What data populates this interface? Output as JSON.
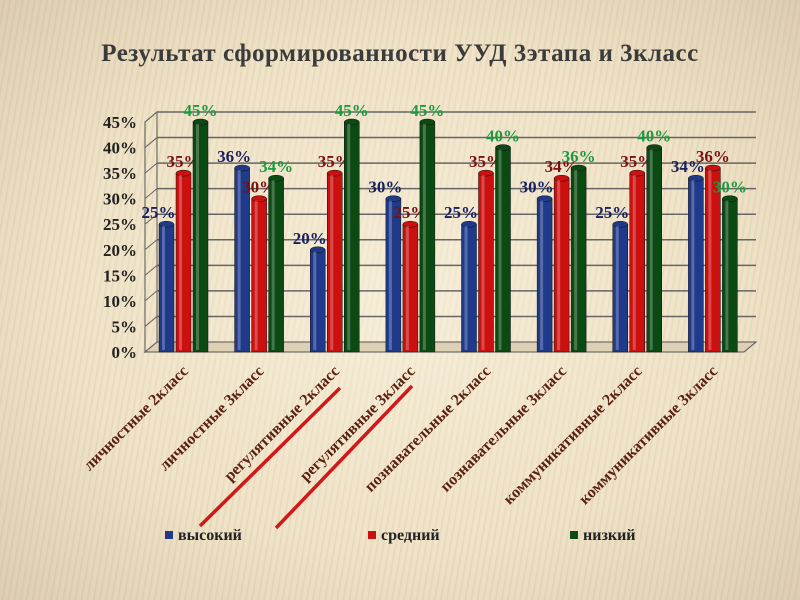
{
  "title": "Результат сформированности УУД  3этапа  и 3класс",
  "chart_data": {
    "type": "bar",
    "title": "Результат сформированности УУД  3этапа  и 3класс",
    "categories": [
      "личностные  2класс",
      "личностные  3класс",
      "регулятивные 2класс",
      "регулятивные 3класс",
      "познавательные 2класс",
      "познавательные 3класс",
      "коммуникативные 2класс",
      "коммуникативные 3класс"
    ],
    "series": [
      {
        "name": "высокий",
        "color": "#1f3a8a",
        "label_color": "#1a2060",
        "values": [
          25,
          36,
          20,
          30,
          25,
          30,
          25,
          34
        ]
      },
      {
        "name": "средний",
        "color": "#cc1010",
        "label_color": "#7a1010",
        "values": [
          35,
          30,
          35,
          25,
          35,
          34,
          35,
          36
        ]
      },
      {
        "name": "низкий",
        "color": "#0b4a12",
        "label_color": "#1e9a40",
        "values": [
          45,
          34,
          45,
          45,
          40,
          36,
          40,
          30
        ]
      }
    ],
    "yticks": [
      "0%",
      "5%",
      "10%",
      "15%",
      "20%",
      "25%",
      "30%",
      "35%",
      "40%",
      "45%"
    ],
    "ylim": [
      0,
      45
    ],
    "grid": true,
    "legend": "bottom",
    "xlabel": "",
    "ylabel": ""
  }
}
